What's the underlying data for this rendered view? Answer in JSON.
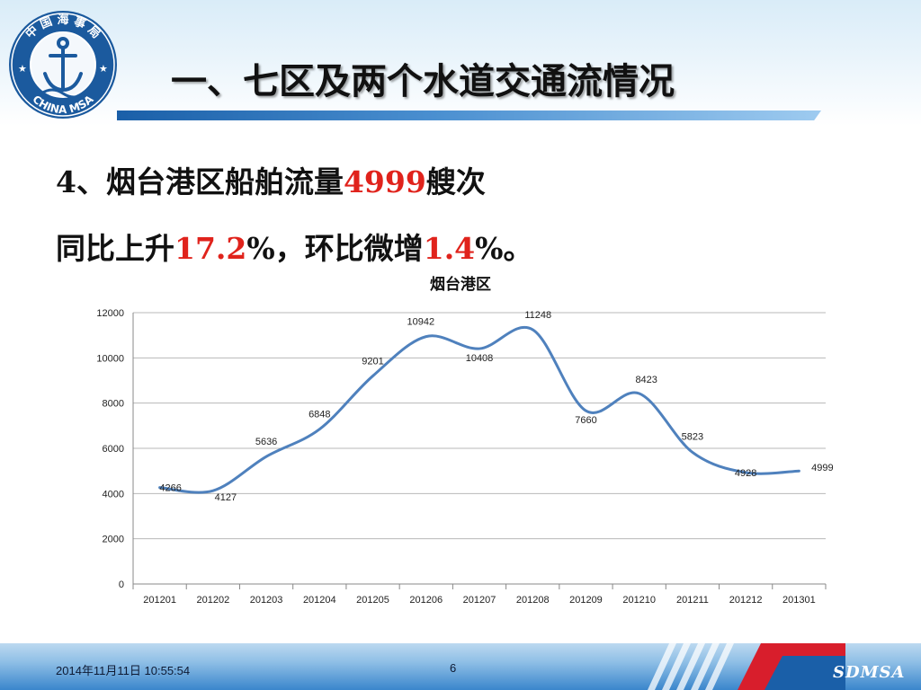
{
  "header": {
    "title": "一、七区及两个水道交通流情况",
    "logo": {
      "text_top": "中 国 海 事 局",
      "text_bottom": "CHINA MSA",
      "icon": "anchor-emblem-icon"
    }
  },
  "bullets": {
    "line1": {
      "prefix": "4、烟台港区船舶流量",
      "value": "4999",
      "suffix": "艘次"
    },
    "line2": {
      "prefix": "同比上升",
      "yoy": "17.2",
      "mid": "%，环比微增",
      "mom": "1.4",
      "suffix": "%。"
    }
  },
  "colors": {
    "highlight": "#e0231c",
    "series": "#4f81bd",
    "grid": "#b8b8b8",
    "brand": "#1a5fa8"
  },
  "chart_data": {
    "type": "line",
    "title": "烟台港区",
    "categories": [
      "201201",
      "201202",
      "201203",
      "201204",
      "201205",
      "201206",
      "201207",
      "201208",
      "201209",
      "201210",
      "201211",
      "201212",
      "201301"
    ],
    "values": [
      4266,
      4127,
      5636,
      6848,
      9201,
      10942,
      10408,
      11248,
      7660,
      8423,
      5823,
      4928,
      4999
    ],
    "ylim": [
      0,
      12000
    ],
    "yticks": [
      0,
      2000,
      4000,
      6000,
      8000,
      10000,
      12000
    ],
    "grid": true,
    "smooth": true,
    "legend": "none"
  },
  "footer": {
    "date": "2014年11月11日  10:55:54",
    "page": "6",
    "brand": "SDMSA"
  }
}
